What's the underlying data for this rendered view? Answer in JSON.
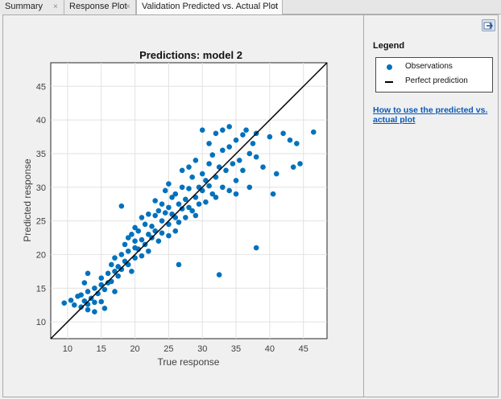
{
  "tabs": [
    {
      "label": "Summary",
      "close": "×"
    },
    {
      "label": "Response Plot",
      "close": "×"
    },
    {
      "label": "Validation Predicted vs. Actual Plot",
      "close": "×"
    }
  ],
  "legend": {
    "title": "Legend",
    "items": [
      {
        "label": "Observations",
        "color": "#0072bd",
        "marker": "filled-circle"
      },
      {
        "label": "Perfect prediction",
        "color": "#000000",
        "marker": "line"
      }
    ]
  },
  "help_link": "How to use the predicted vs. actual plot",
  "dock_icon": "undock-arrow-icon",
  "chart_data": {
    "type": "scatter",
    "title": "Predictions: model 2",
    "xlabel": "True response",
    "ylabel": "Predicted response",
    "xlim": [
      7.5,
      48.5
    ],
    "ylim": [
      7.5,
      48.5
    ],
    "xticks": [
      10,
      15,
      20,
      25,
      30,
      35,
      40,
      45
    ],
    "yticks": [
      10,
      15,
      20,
      25,
      30,
      35,
      40,
      45
    ],
    "grid": true,
    "series": [
      {
        "name": "Observations",
        "color": "#0072bd",
        "points": [
          [
            9.5,
            12.8
          ],
          [
            10.5,
            13.2
          ],
          [
            11,
            12.5
          ],
          [
            11.5,
            13.8
          ],
          [
            12,
            12.2
          ],
          [
            12,
            14.0
          ],
          [
            12.5,
            13.1
          ],
          [
            13,
            12.6
          ],
          [
            13,
            14.5
          ],
          [
            13,
            11.8
          ],
          [
            13.5,
            13.5
          ],
          [
            14,
            12.9
          ],
          [
            14,
            15.0
          ],
          [
            14,
            11.5
          ],
          [
            14.5,
            14.2
          ],
          [
            15,
            13.0
          ],
          [
            15,
            15.5
          ],
          [
            15,
            16.5
          ],
          [
            15.5,
            14.8
          ],
          [
            15.5,
            12.0
          ],
          [
            16,
            17.2
          ],
          [
            16,
            15.8
          ],
          [
            16.5,
            16.0
          ],
          [
            16.5,
            18.5
          ],
          [
            17,
            17.5
          ],
          [
            17,
            14.5
          ],
          [
            17,
            19.5
          ],
          [
            17.5,
            18.2
          ],
          [
            17.5,
            16.8
          ],
          [
            18,
            20.0
          ],
          [
            18,
            17.8
          ],
          [
            18,
            27.2
          ],
          [
            18.5,
            21.5
          ],
          [
            18.5,
            19.0
          ],
          [
            19,
            22.5
          ],
          [
            19,
            18.5
          ],
          [
            19,
            20.5
          ],
          [
            19.5,
            23.0
          ],
          [
            19.5,
            17.5
          ],
          [
            20,
            21.0
          ],
          [
            20,
            24.0
          ],
          [
            20,
            19.5
          ],
          [
            20,
            22.0
          ],
          [
            20.5,
            23.5
          ],
          [
            20.5,
            20.8
          ],
          [
            21,
            22.2
          ],
          [
            21,
            25.5
          ],
          [
            21,
            19.8
          ],
          [
            21.5,
            24.5
          ],
          [
            21.5,
            21.5
          ],
          [
            22,
            23.0
          ],
          [
            22,
            26.0
          ],
          [
            22,
            20.5
          ],
          [
            22.5,
            24.2
          ],
          [
            22.5,
            22.5
          ],
          [
            23,
            25.8
          ],
          [
            23,
            23.5
          ],
          [
            23,
            28.0
          ],
          [
            23.5,
            22.0
          ],
          [
            23.5,
            26.5
          ],
          [
            24,
            25.0
          ],
          [
            24,
            27.5
          ],
          [
            24,
            23.2
          ],
          [
            24.5,
            26.2
          ],
          [
            24.5,
            29.5
          ],
          [
            25,
            24.5
          ],
          [
            25,
            27.0
          ],
          [
            25,
            22.8
          ],
          [
            25,
            30.5
          ],
          [
            25.5,
            26.0
          ],
          [
            25.5,
            28.5
          ],
          [
            26,
            25.5
          ],
          [
            26,
            23.5
          ],
          [
            26,
            29.0
          ],
          [
            26.5,
            27.5
          ],
          [
            26.5,
            24.8
          ],
          [
            27,
            26.8
          ],
          [
            27,
            30.0
          ],
          [
            27,
            32.5
          ],
          [
            27.5,
            28.2
          ],
          [
            27.5,
            25.5
          ],
          [
            28,
            27.0
          ],
          [
            28,
            29.8
          ],
          [
            28,
            33.0
          ],
          [
            28.5,
            26.5
          ],
          [
            28.5,
            31.5
          ],
          [
            29,
            28.5
          ],
          [
            29,
            25.8
          ],
          [
            29,
            34.0
          ],
          [
            29.5,
            30.0
          ],
          [
            29.5,
            27.5
          ],
          [
            30,
            29.5
          ],
          [
            30,
            32.0
          ],
          [
            30,
            38.5
          ],
          [
            30.5,
            31.0
          ],
          [
            30.5,
            27.8
          ],
          [
            31,
            33.5
          ],
          [
            31,
            30.2
          ],
          [
            31,
            36.5
          ],
          [
            31.5,
            29.0
          ],
          [
            31.5,
            34.8
          ],
          [
            32,
            31.5
          ],
          [
            32,
            38.0
          ],
          [
            32,
            28.5
          ],
          [
            32.5,
            33.0
          ],
          [
            32.5,
            17.0
          ],
          [
            33,
            35.5
          ],
          [
            33,
            30.0
          ],
          [
            33,
            38.5
          ],
          [
            33.5,
            32.5
          ],
          [
            34,
            36.0
          ],
          [
            34,
            29.5
          ],
          [
            34,
            39.0
          ],
          [
            34.5,
            33.5
          ],
          [
            35,
            37.0
          ],
          [
            35,
            31.0
          ],
          [
            35,
            29.0
          ],
          [
            35.5,
            34.0
          ],
          [
            36,
            37.8
          ],
          [
            36,
            32.5
          ],
          [
            36.5,
            38.5
          ],
          [
            37,
            35.0
          ],
          [
            37,
            30.0
          ],
          [
            37.5,
            36.5
          ],
          [
            38,
            21.0
          ],
          [
            38,
            34.5
          ],
          [
            38,
            38.0
          ],
          [
            39,
            33.0
          ],
          [
            40,
            37.5
          ],
          [
            40.5,
            29.0
          ],
          [
            41,
            32.0
          ],
          [
            42,
            38.0
          ],
          [
            43,
            37.0
          ],
          [
            43.5,
            33.0
          ],
          [
            44,
            36.5
          ],
          [
            44.5,
            33.5
          ],
          [
            46.5,
            38.2
          ],
          [
            26.5,
            18.5
          ],
          [
            13,
            17.2
          ],
          [
            12.5,
            15.8
          ]
        ]
      },
      {
        "name": "Perfect prediction",
        "color": "#000000",
        "line": [
          [
            7.5,
            7.5
          ],
          [
            48.5,
            48.5
          ]
        ]
      }
    ]
  }
}
